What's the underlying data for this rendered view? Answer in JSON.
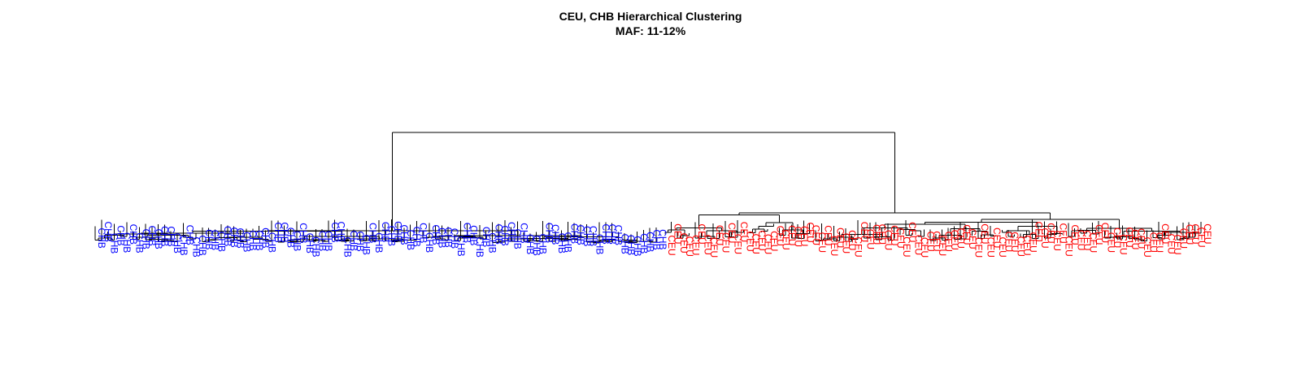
{
  "title": "CEU, CHB Hierarchical Clustering",
  "subtitle": "MAF: 11-12%",
  "colors": {
    "CHB": "#0000ff",
    "CEU": "#ff0000",
    "link": "#000000"
  },
  "chart_data": {
    "type": "dendrogram",
    "title": "CEU, CHB Hierarchical Clustering",
    "subtitle": "MAF: 11-12%",
    "root_height": 1.0,
    "clusters": [
      {
        "name": "CHB",
        "leaf_label": "CHB",
        "color": "#0000ff",
        "leaf_count": 90,
        "merge_height": 1.0,
        "subcluster_height": 0.17
      },
      {
        "name": "CEU",
        "leaf_label": "CEU",
        "color": "#ff0000",
        "leaf_count": 90,
        "merge_height": 1.0,
        "subcluster_height": 0.4
      }
    ]
  }
}
